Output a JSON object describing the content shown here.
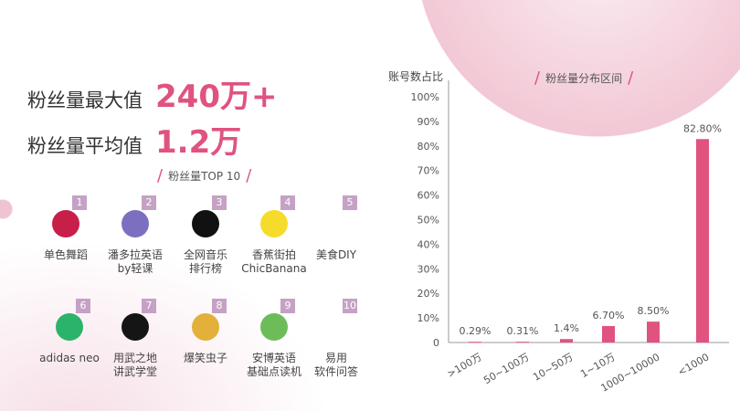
{
  "stats": [
    {
      "label": "粉丝量最大值",
      "value": "240万+"
    },
    {
      "label": "粉丝量平均值",
      "value": "1.2万"
    }
  ],
  "top10": {
    "title": "粉丝量TOP 10",
    "items": [
      {
        "rank": "1",
        "name": [
          "单色舞蹈"
        ],
        "color": "#c81e4a",
        "icon": "dance-logo-icon"
      },
      {
        "rank": "2",
        "name": [
          "潘多拉英语",
          "by轻课"
        ],
        "color": "#7d6fc0",
        "icon": "box-logo-icon"
      },
      {
        "rank": "3",
        "name": [
          "全网音乐",
          "排行榜"
        ],
        "color": "#111",
        "icon": "star-logo-icon"
      },
      {
        "rank": "4",
        "name": [
          "香蕉街拍",
          "ChicBanana"
        ],
        "color": "#f5dc2a",
        "icon": "banana-logo-icon"
      },
      {
        "rank": "5",
        "name": [
          "美食DIY"
        ],
        "color": "#fff",
        "icon": "eat-logo-icon"
      },
      {
        "rank": "6",
        "name": [
          "adidas neo"
        ],
        "color": "#2cb36a",
        "icon": "adidas-neo-logo-icon"
      },
      {
        "rank": "7",
        "name": [
          "用武之地",
          "讲武学堂"
        ],
        "color": "#151515",
        "icon": "calligraphy-logo-icon"
      },
      {
        "rank": "8",
        "name": [
          "爆笑虫子"
        ],
        "color": "#e3b03a",
        "icon": "cartoon-logo-icon"
      },
      {
        "rank": "9",
        "name": [
          "安博英语",
          "基础点读机"
        ],
        "color": "#6cbd5a",
        "icon": "english-logo-icon"
      },
      {
        "rank": "10",
        "name": [
          "易用",
          "软件问答"
        ],
        "color": "#fff",
        "icon": "star-blue-logo-icon"
      }
    ]
  },
  "chart_data": {
    "type": "bar",
    "title": "粉丝量分布区间",
    "ylabel": "账号数占比",
    "ylim": [
      0,
      100
    ],
    "yticks": [
      "0",
      "10%",
      "20%",
      "30%",
      "40%",
      "50%",
      "60%",
      "70%",
      "80%",
      "90%",
      "100%"
    ],
    "categories": [
      ">100万",
      "50~100万",
      "10~50万",
      "1~10万",
      "1000~10000",
      "<1000"
    ],
    "values": [
      0.29,
      0.31,
      1.4,
      6.7,
      8.5,
      82.8
    ],
    "data_labels": [
      "0.29%",
      "0.31%",
      "1.4%",
      "6.70%",
      "8.50%",
      "82.80%"
    ],
    "grid": false,
    "bar_color": "#e0537f"
  }
}
